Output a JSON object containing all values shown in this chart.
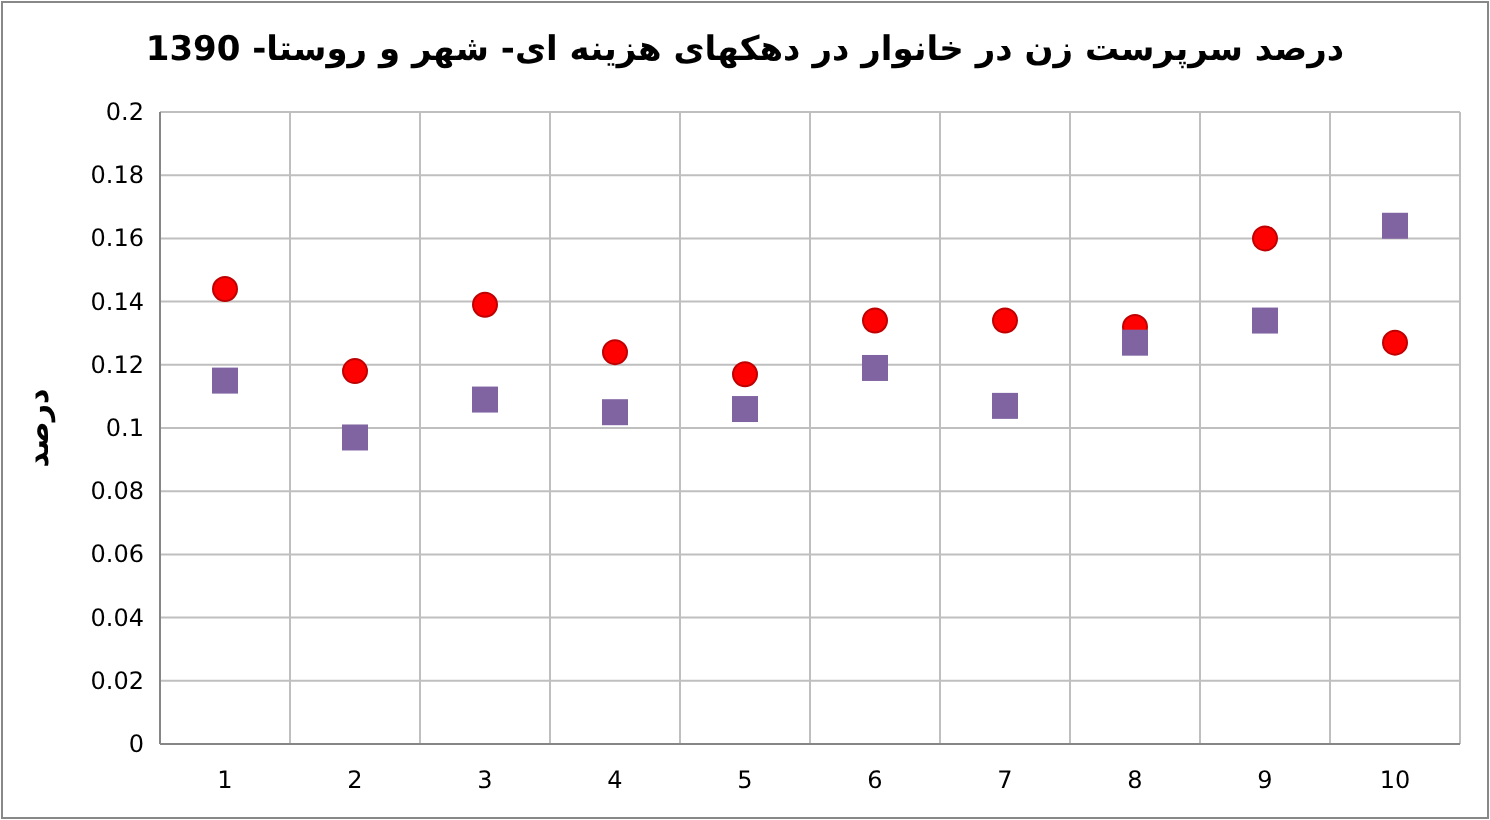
{
  "chart_data": {
    "type": "scatter",
    "title": "درصد سرپرست زن در خانوار در دهکهای هزینه ای- شهر و روستا- 1390",
    "ylabel": "درصد",
    "categories": [
      "1",
      "2",
      "3",
      "4",
      "5",
      "6",
      "7",
      "8",
      "9",
      "10"
    ],
    "series": [
      {
        "color": "#ff0000",
        "marker": "circle",
        "values": [
          0.144,
          0.118,
          0.139,
          0.124,
          0.117,
          0.134,
          0.134,
          0.132,
          0.16,
          0.127
        ]
      },
      {
        "color": "#8064a2",
        "marker": "square",
        "values": [
          0.115,
          0.097,
          0.109,
          0.105,
          0.106,
          0.119,
          0.107,
          0.127,
          0.134,
          0.164
        ]
      }
    ],
    "ylim": [
      0,
      0.2
    ],
    "yticks": [
      0,
      0.02,
      0.04,
      0.06,
      0.08,
      0.1,
      0.12,
      0.14,
      0.16,
      0.18,
      0.2
    ],
    "grid": true
  }
}
